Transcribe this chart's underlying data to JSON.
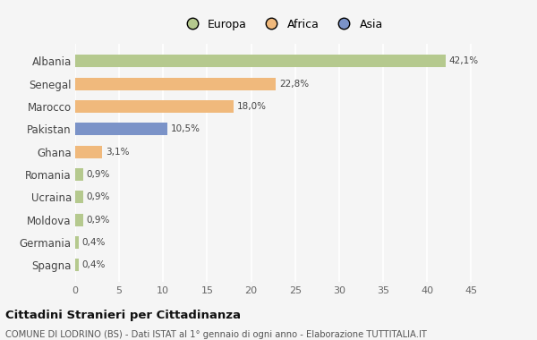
{
  "countries": [
    "Albania",
    "Senegal",
    "Marocco",
    "Pakistan",
    "Ghana",
    "Romania",
    "Ucraina",
    "Moldova",
    "Germania",
    "Spagna"
  ],
  "values": [
    42.1,
    22.8,
    18.0,
    10.5,
    3.1,
    0.9,
    0.9,
    0.9,
    0.4,
    0.4
  ],
  "labels": [
    "42,1%",
    "22,8%",
    "18,0%",
    "10,5%",
    "3,1%",
    "0,9%",
    "0,9%",
    "0,9%",
    "0,4%",
    "0,4%"
  ],
  "colors": [
    "#b5c98e",
    "#f0b97c",
    "#f0b97c",
    "#7b93c8",
    "#f0b97c",
    "#b5c98e",
    "#b5c98e",
    "#b5c98e",
    "#b5c98e",
    "#b5c98e"
  ],
  "legend_labels": [
    "Europa",
    "Africa",
    "Asia"
  ],
  "legend_colors": [
    "#b5c98e",
    "#f0b97c",
    "#7b93c8"
  ],
  "title": "Cittadini Stranieri per Cittadinanza",
  "subtitle": "COMUNE DI LODRINO (BS) - Dati ISTAT al 1° gennaio di ogni anno - Elaborazione TUTTITALIA.IT",
  "xlim": [
    0,
    47
  ],
  "xticks": [
    0,
    5,
    10,
    15,
    20,
    25,
    30,
    35,
    40,
    45
  ],
  "bg_color": "#f5f5f5",
  "bar_alpha": 1.0,
  "bar_height": 0.55
}
